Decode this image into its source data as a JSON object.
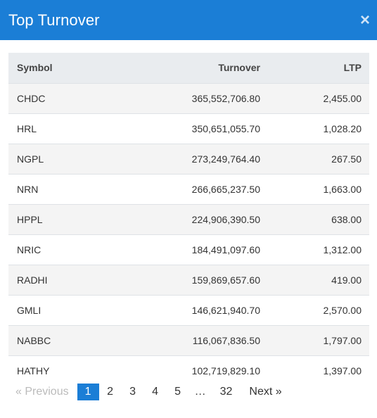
{
  "modal": {
    "title": "Top Turnover",
    "close_icon": "×"
  },
  "table": {
    "headers": {
      "symbol": "Symbol",
      "turnover": "Turnover",
      "ltp": "LTP"
    },
    "rows": [
      {
        "symbol": "CHDC",
        "turnover": "365,552,706.80",
        "ltp": "2,455.00"
      },
      {
        "symbol": "HRL",
        "turnover": "350,651,055.70",
        "ltp": "1,028.20"
      },
      {
        "symbol": "NGPL",
        "turnover": "273,249,764.40",
        "ltp": "267.50"
      },
      {
        "symbol": "NRN",
        "turnover": "266,665,237.50",
        "ltp": "1,663.00"
      },
      {
        "symbol": "HPPL",
        "turnover": "224,906,390.50",
        "ltp": "638.00"
      },
      {
        "symbol": "NRIC",
        "turnover": "184,491,097.60",
        "ltp": "1,312.00"
      },
      {
        "symbol": "RADHI",
        "turnover": "159,869,657.60",
        "ltp": "419.00"
      },
      {
        "symbol": "GMLI",
        "turnover": "146,621,940.70",
        "ltp": "2,570.00"
      },
      {
        "symbol": "NABBC",
        "turnover": "116,067,836.50",
        "ltp": "1,797.00"
      },
      {
        "symbol": "HATHY",
        "turnover": "102,719,829.10",
        "ltp": "1,397.00"
      }
    ]
  },
  "pagination": {
    "prev": "«  Previous",
    "pages": [
      "1",
      "2",
      "3",
      "4",
      "5",
      "…",
      "32"
    ],
    "next": "Next  »"
  },
  "colors": {
    "accent": "#1b7ed6"
  }
}
